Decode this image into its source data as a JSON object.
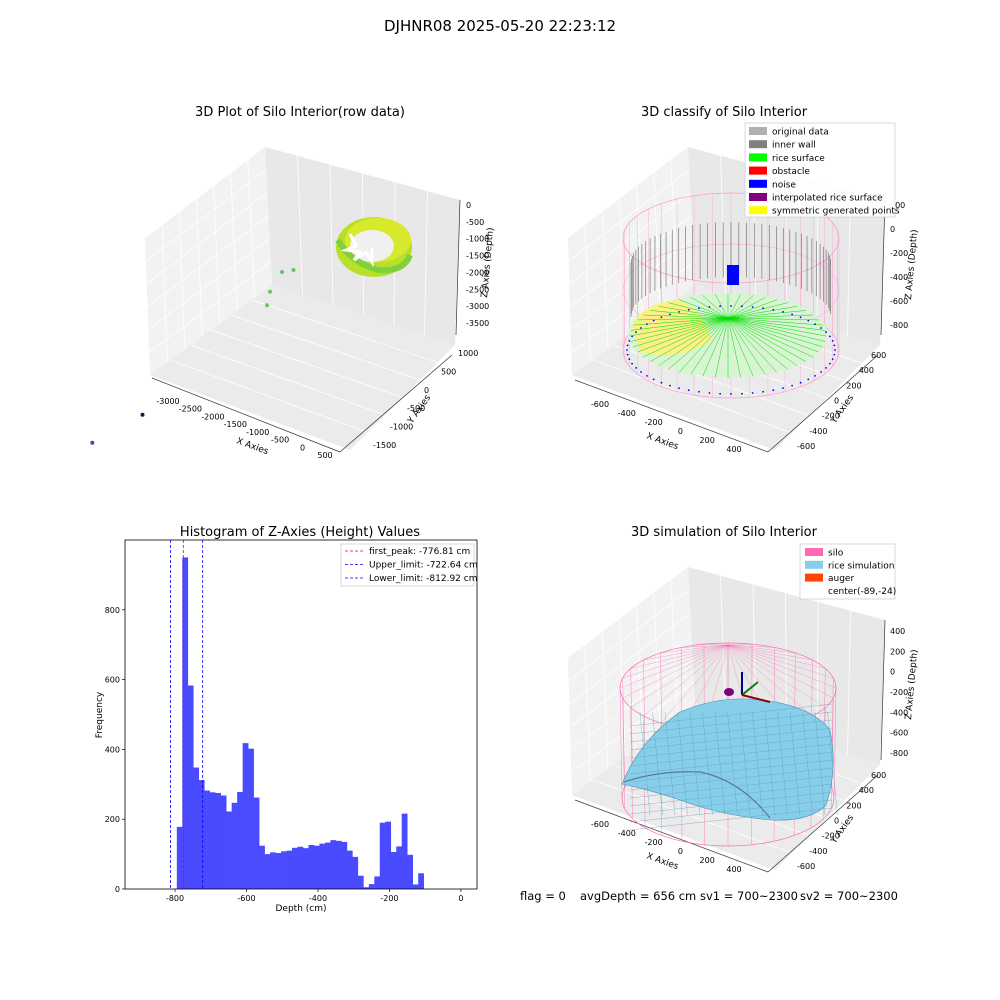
{
  "figure": {
    "suptitle": "DJHNR08 2025-05-20 22:23:12",
    "footer": {
      "flag": "flag = 0",
      "avg_depth": "avgDepth = 656 cm",
      "sv1": "sv1 = 700~2300",
      "sv2": "sv2 = 700~2300"
    }
  },
  "chart_data": [
    {
      "type": "scatter",
      "title": "3D Plot of Silo Interior(row data)",
      "xlabel": "X Axies",
      "ylabel": "Y Axies",
      "zlabel": "Z Axies (Depth)",
      "x_ticks": [
        "-3000",
        "-2500",
        "-2000",
        "-1500",
        "-1000",
        "-500",
        "0",
        "500"
      ],
      "y_ticks": [
        "-1500",
        "-1000",
        "-500",
        "0",
        "500",
        "1000"
      ],
      "z_ticks": [
        "0",
        "-500",
        "-1000",
        "-1500",
        "-2000",
        "-2500",
        "-3000",
        "-3500"
      ],
      "colormap": [
        "#440154",
        "#21918c",
        "#5ec962",
        "#fde725"
      ],
      "outlier_points": [
        {
          "x": -3150,
          "y": -1200,
          "z": -3500
        },
        {
          "x": -2400,
          "y": -900,
          "z": -3300
        },
        {
          "x": -1500,
          "y": 900,
          "z": -1200
        },
        {
          "x": -1400,
          "y": 600,
          "z": -1500
        },
        {
          "x": -1000,
          "y": 700,
          "z": -900
        },
        {
          "x": -1100,
          "y": 300,
          "z": -1600
        }
      ]
    },
    {
      "type": "scatter",
      "title": "3D classify of Silo Interior",
      "xlabel": "X Axies",
      "ylabel": "Y Axies",
      "zlabel": "Z Axies (Depth)",
      "x_ticks": [
        "-600",
        "-400",
        "-200",
        "0",
        "200",
        "400"
      ],
      "y_ticks": [
        "-600",
        "-400",
        "-200",
        "0",
        "200",
        "400",
        "600"
      ],
      "z_ticks": [
        "200",
        "0",
        "-200",
        "-400",
        "-600",
        "-800"
      ],
      "legend": [
        {
          "label": "original data",
          "color": "#b0b0b0"
        },
        {
          "label": "inner wall",
          "color": "#808080"
        },
        {
          "label": "rice surface",
          "color": "#00ff00"
        },
        {
          "label": "obstacle",
          "color": "#ff0000"
        },
        {
          "label": "noise",
          "color": "#0000ff"
        },
        {
          "label": "interpolated rice surface",
          "color": "#800080"
        },
        {
          "label": "symmetric generated points",
          "color": "#ffff00"
        }
      ],
      "wire_color": "#ff9fd0"
    },
    {
      "type": "bar",
      "title": "Histogram of Z-Axies (Height) Values",
      "xlabel": "Depth (cm)",
      "ylabel": "Frequency",
      "xlim": [
        -940,
        45
      ],
      "ylim": [
        0,
        1000
      ],
      "x_ticks": [
        -800,
        -600,
        -400,
        -200,
        0
      ],
      "y_ticks": [
        0,
        200,
        400,
        600,
        800
      ],
      "bar_color": "#4a4aff",
      "bin_start": -795,
      "bin_width": 15.35,
      "values": [
        178,
        950,
        583,
        348,
        312,
        282,
        277,
        275,
        268,
        222,
        247,
        278,
        418,
        402,
        262,
        124,
        100,
        105,
        103,
        108,
        110,
        118,
        121,
        117,
        126,
        124,
        130,
        133,
        140,
        138,
        135,
        110,
        92,
        38,
        5,
        14,
        36,
        190,
        193,
        106,
        122,
        216,
        98,
        13,
        45
      ],
      "vlines": [
        {
          "label": "first_peak: -776.81 cm",
          "x": -776.81,
          "color": "#ff0000"
        },
        {
          "label": "Upper_limit: -722.64 cm",
          "x": -722.64,
          "color": "#0000ff"
        },
        {
          "label": "Lower_limit: -812.92 cm",
          "x": -812.92,
          "color": "#0000ff"
        }
      ]
    },
    {
      "type": "area",
      "title": "3D simulation of Silo Interior",
      "xlabel": "X Axies",
      "ylabel": "Y Axies",
      "zlabel": "Z Axies (Depth)",
      "x_ticks": [
        "-600",
        "-400",
        "-200",
        "0",
        "200",
        "400"
      ],
      "y_ticks": [
        "-600",
        "-400",
        "-200",
        "0",
        "200",
        "400",
        "600"
      ],
      "z_ticks": [
        "400",
        "200",
        "0",
        "-200",
        "-400",
        "-600",
        "-800"
      ],
      "legend": [
        {
          "label": "silo",
          "color": "#ff69b4"
        },
        {
          "label": "rice simulation",
          "color": "#87ceeb"
        },
        {
          "label": "auger",
          "color": "#ff4500"
        },
        {
          "label": "center(-89,-24)",
          "color": ""
        }
      ]
    }
  ]
}
